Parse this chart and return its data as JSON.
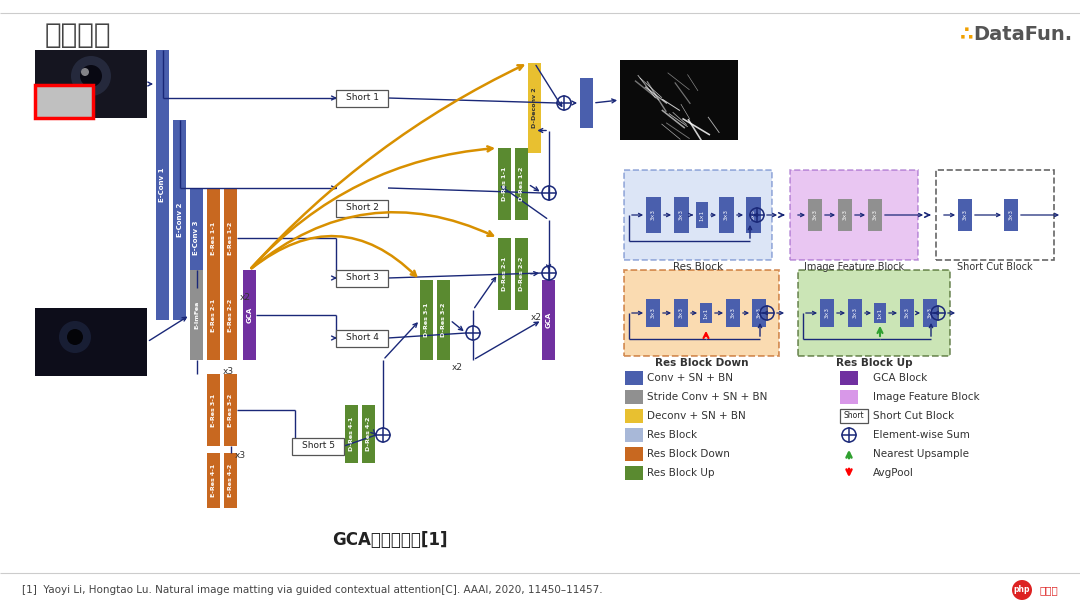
{
  "title": "基线网络",
  "subtitle_center": "GCA网络示意图[1]",
  "footer": "[1]  Yaoyi Li, Hongtao Lu. Natural image matting via guided contextual attention[C]. AAAI, 2020, 11450–11457.",
  "bg_color": "#ffffff",
  "colors": {
    "conv_sn_bn": "#4a5fad",
    "stride_conv": "#909090",
    "deconv": "#e8c030",
    "res_block": "#a8b8d8",
    "res_block_down": "#c86820",
    "res_block_up": "#5a8a30",
    "gca_block": "#7030a0",
    "image_feature_bg": "#d898e8",
    "res_block_bg_fill": "#c0d0f0",
    "res_block_down_bg_fill": "#f8c888",
    "res_block_up_bg_fill": "#b0d890",
    "arrow": "#1a2878",
    "yellow_curve": "#d89000"
  }
}
